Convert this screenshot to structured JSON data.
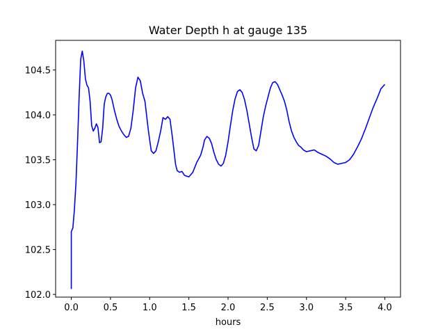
{
  "chart_data": {
    "type": "line",
    "title": "Water Depth h at gauge 135",
    "xlabel": "hours",
    "ylabel": "",
    "xlim": [
      -0.2,
      4.2
    ],
    "ylim": [
      101.97,
      104.83
    ],
    "grid": false,
    "xticks": [
      0.0,
      0.5,
      1.0,
      1.5,
      2.0,
      2.5,
      3.0,
      3.5,
      4.0
    ],
    "xtick_labels": [
      "0.0",
      "0.5",
      "1.0",
      "1.5",
      "2.0",
      "2.5",
      "3.0",
      "3.5",
      "4.0"
    ],
    "yticks": [
      102.0,
      102.5,
      103.0,
      103.5,
      104.0,
      104.5
    ],
    "ytick_labels": [
      "102.0",
      "102.5",
      "103.0",
      "103.5",
      "104.0",
      "104.5"
    ],
    "series": [
      {
        "color": "#0000ff",
        "x": [
          0.0,
          0.0,
          0.02,
          0.04,
          0.06,
          0.08,
          0.1,
          0.12,
          0.14,
          0.16,
          0.18,
          0.2,
          0.22,
          0.24,
          0.26,
          0.28,
          0.3,
          0.32,
          0.34,
          0.36,
          0.38,
          0.4,
          0.42,
          0.44,
          0.46,
          0.48,
          0.5,
          0.52,
          0.55,
          0.58,
          0.61,
          0.64,
          0.67,
          0.7,
          0.73,
          0.76,
          0.79,
          0.82,
          0.85,
          0.88,
          0.91,
          0.94,
          0.96,
          0.98,
          1.0,
          1.02,
          1.05,
          1.08,
          1.11,
          1.14,
          1.17,
          1.2,
          1.23,
          1.26,
          1.27,
          1.29,
          1.31,
          1.33,
          1.35,
          1.38,
          1.41,
          1.42,
          1.44,
          1.46,
          1.5,
          1.55,
          1.6,
          1.65,
          1.68,
          1.7,
          1.73,
          1.76,
          1.79,
          1.82,
          1.85,
          1.88,
          1.91,
          1.94,
          1.97,
          2.0,
          2.03,
          2.06,
          2.09,
          2.12,
          2.15,
          2.18,
          2.21,
          2.24,
          2.27,
          2.3,
          2.33,
          2.36,
          2.39,
          2.42,
          2.45,
          2.48,
          2.51,
          2.54,
          2.57,
          2.6,
          2.63,
          2.66,
          2.69,
          2.72,
          2.75,
          2.78,
          2.81,
          2.84,
          2.87,
          2.9,
          2.93,
          2.96,
          3.0,
          3.05,
          3.1,
          3.15,
          3.2,
          3.25,
          3.3,
          3.35,
          3.4,
          3.45,
          3.5,
          3.55,
          3.6,
          3.65,
          3.7,
          3.75,
          3.8,
          3.85,
          3.9,
          3.95,
          4.0
        ],
        "y": [
          102.06,
          102.7,
          102.74,
          102.95,
          103.25,
          103.7,
          104.2,
          104.62,
          104.71,
          104.6,
          104.4,
          104.33,
          104.3,
          104.15,
          103.88,
          103.82,
          103.85,
          103.9,
          103.86,
          103.69,
          103.7,
          103.85,
          104.12,
          104.2,
          104.24,
          104.24,
          104.22,
          104.17,
          104.05,
          103.95,
          103.87,
          103.82,
          103.78,
          103.75,
          103.76,
          103.85,
          104.05,
          104.3,
          104.42,
          104.38,
          104.24,
          104.15,
          104.0,
          103.85,
          103.72,
          103.6,
          103.57,
          103.6,
          103.7,
          103.82,
          103.97,
          103.95,
          103.98,
          103.95,
          103.88,
          103.75,
          103.6,
          103.45,
          103.38,
          103.36,
          103.37,
          103.36,
          103.33,
          103.32,
          103.31,
          103.36,
          103.47,
          103.55,
          103.64,
          103.72,
          103.76,
          103.74,
          103.68,
          103.58,
          103.5,
          103.45,
          103.43,
          103.46,
          103.55,
          103.7,
          103.88,
          104.05,
          104.18,
          104.26,
          104.28,
          104.25,
          104.17,
          104.05,
          103.9,
          103.75,
          103.62,
          103.6,
          103.66,
          103.82,
          103.98,
          104.1,
          104.2,
          104.3,
          104.36,
          104.37,
          104.34,
          104.28,
          104.22,
          104.15,
          104.05,
          103.92,
          103.82,
          103.75,
          103.7,
          103.66,
          103.64,
          103.61,
          103.59,
          103.6,
          103.61,
          103.58,
          103.56,
          103.54,
          103.51,
          103.47,
          103.45,
          103.46,
          103.47,
          103.5,
          103.56,
          103.64,
          103.73,
          103.84,
          103.96,
          104.08,
          104.18,
          104.29,
          104.34
        ]
      }
    ]
  }
}
